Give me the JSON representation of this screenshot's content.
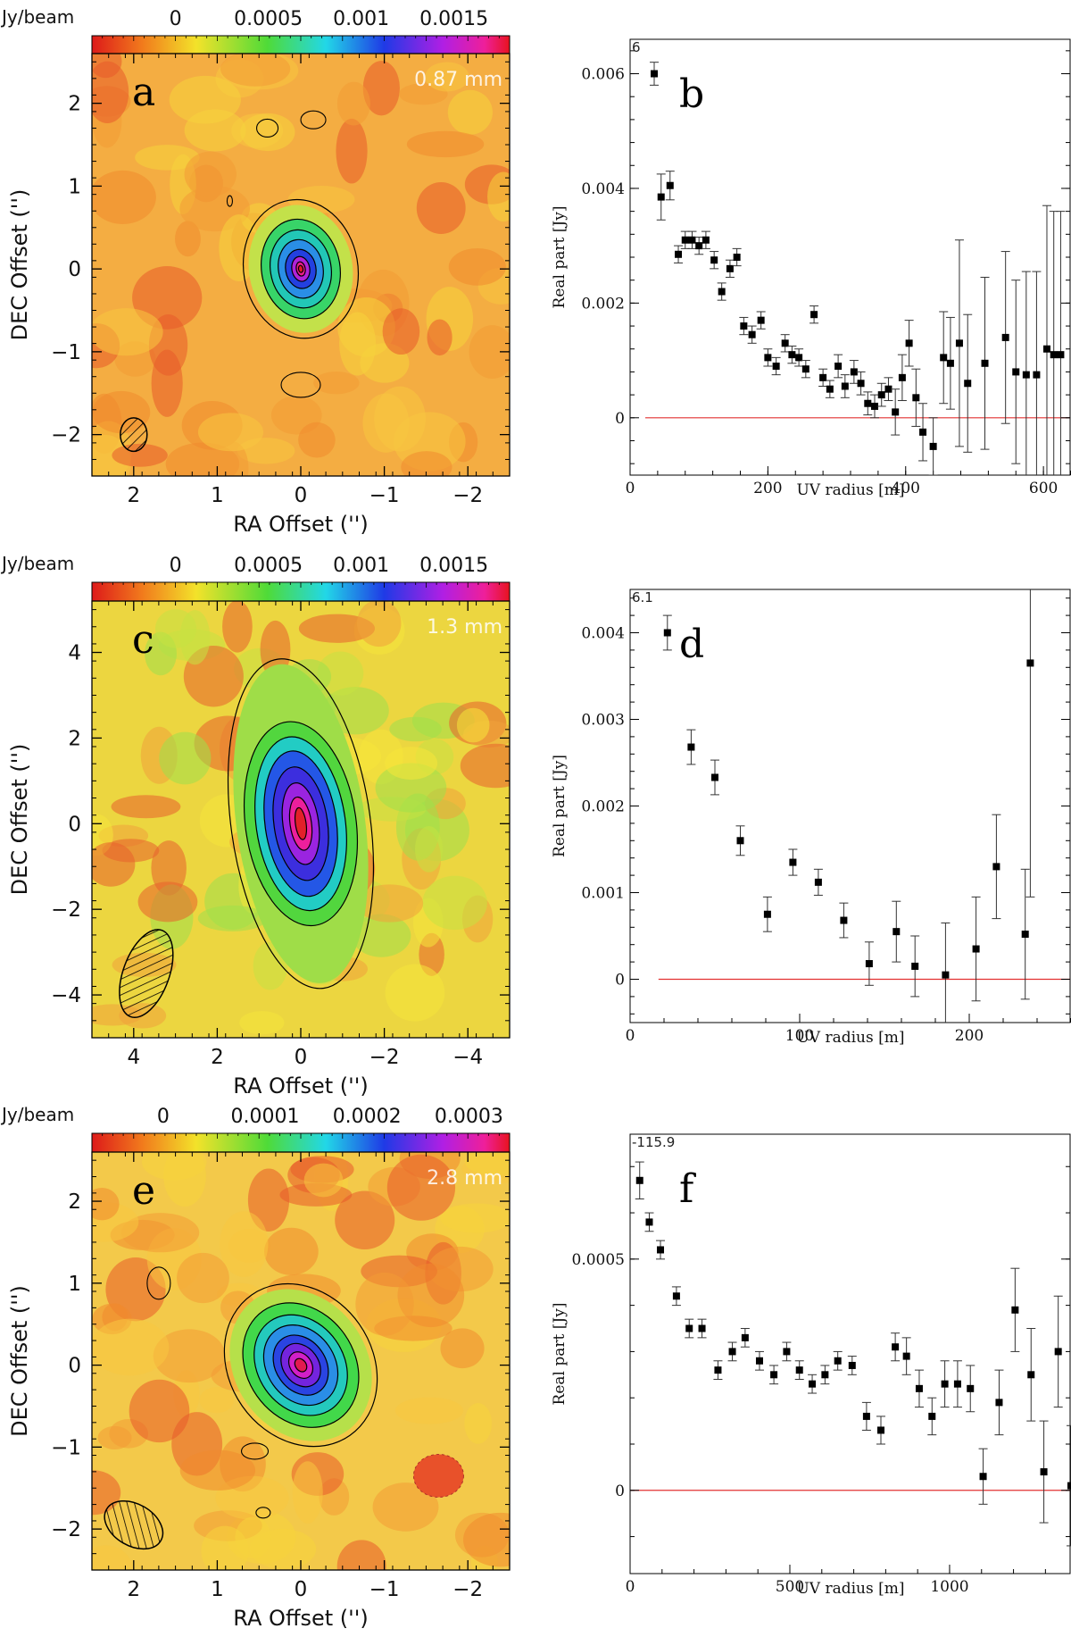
{
  "chart_data": [
    {
      "panel": "a",
      "type": "heatmap",
      "wavelength_label": "0.87 mm",
      "colorbar": {
        "unit": "Jy/beam",
        "ticks": [
          0,
          0.0005,
          0.001,
          0.0015
        ],
        "tick_labels": [
          "0",
          "0.0005",
          "0.001",
          "0.0015"
        ],
        "range": [
          -0.00045,
          0.0018
        ]
      },
      "xlabel": "RA Offset ('')",
      "ylabel": "DEC Offset ('')",
      "xlim": [
        2.5,
        -2.5
      ],
      "ylim": [
        -2.5,
        2.6
      ],
      "xticks": [
        2,
        1,
        0,
        -1,
        -2
      ],
      "xtick_labels": [
        "2",
        "1",
        "0",
        "−1",
        "−2"
      ],
      "yticks": [
        -2,
        -1,
        0,
        1,
        2
      ],
      "ytick_labels": [
        "−2",
        "−1",
        "0",
        "1",
        "2"
      ],
      "peak_position": [
        0,
        0
      ],
      "beam": {
        "x": 2.0,
        "y": -2.0,
        "major_arcsec": 0.4,
        "minor_arcsec": 0.32,
        "pa_deg": 0
      }
    },
    {
      "panel": "b",
      "type": "scatter",
      "corner_label": "6",
      "xlabel": "UV radius [m]",
      "ylabel": "Real part [Jy]",
      "xlim": [
        0,
        640
      ],
      "ylim": [
        -0.001,
        0.0066
      ],
      "xticks": [
        0,
        200,
        400,
        600
      ],
      "xtick_labels": [
        "0",
        "200",
        "400",
        "600"
      ],
      "yticks": [
        0,
        0.002,
        0.004,
        0.006
      ],
      "ytick_labels": [
        "0",
        "0.002",
        "0.004",
        "0.006"
      ],
      "zero_line": true,
      "x": [
        35,
        45,
        58,
        70,
        80,
        90,
        100,
        110,
        122,
        133,
        145,
        155,
        165,
        177,
        190,
        200,
        212,
        225,
        235,
        245,
        255,
        267,
        280,
        290,
        302,
        312,
        325,
        335,
        345,
        355,
        365,
        375,
        385,
        395,
        405,
        415,
        425,
        440,
        455,
        465,
        478,
        490,
        515,
        545,
        560,
        575,
        590,
        605,
        615,
        625
      ],
      "y": [
        0.006,
        0.00385,
        0.00405,
        0.00285,
        0.0031,
        0.0031,
        0.003,
        0.0031,
        0.00275,
        0.0022,
        0.0026,
        0.0028,
        0.0016,
        0.00145,
        0.0017,
        0.00105,
        0.0009,
        0.0013,
        0.0011,
        0.00105,
        0.00085,
        0.0018,
        0.0007,
        0.0005,
        0.0009,
        0.00055,
        0.0008,
        0.0006,
        0.00025,
        0.0002,
        0.0004,
        0.0005,
        0.0001,
        0.0007,
        0.0013,
        0.00035,
        -0.00025,
        -0.0005,
        0.00105,
        0.00095,
        0.0013,
        0.0006,
        0.00095,
        0.0014,
        0.0008,
        0.00075,
        0.00075,
        0.0012,
        0.0011,
        0.0011
      ],
      "yerr": [
        0.0002,
        0.0004,
        0.00025,
        0.00015,
        0.00015,
        0.00015,
        0.00015,
        0.00015,
        0.00015,
        0.00015,
        0.00015,
        0.00015,
        0.00015,
        0.00015,
        0.00015,
        0.00015,
        0.00015,
        0.00015,
        0.00015,
        0.00015,
        0.00015,
        0.00015,
        0.00015,
        0.00015,
        0.0002,
        0.0002,
        0.0002,
        0.0002,
        0.0002,
        0.0002,
        0.0002,
        0.0002,
        0.0004,
        0.0004,
        0.0004,
        0.0005,
        0.0005,
        0.0005,
        0.0008,
        0.0008,
        0.0018,
        0.0012,
        0.0015,
        0.0015,
        0.0016,
        0.0018,
        0.0018,
        0.0025,
        0.0025,
        0.0025
      ]
    },
    {
      "panel": "c",
      "type": "heatmap",
      "wavelength_label": "1.3 mm",
      "colorbar": {
        "unit": "Jy/beam",
        "ticks": [
          0,
          0.0005,
          0.001,
          0.0015
        ],
        "tick_labels": [
          "0",
          "0.0005",
          "0.001",
          "0.0015"
        ],
        "range": [
          -0.00045,
          0.0018
        ]
      },
      "xlabel": "RA Offset ('')",
      "ylabel": "DEC Offset ('')",
      "xlim": [
        5,
        -5
      ],
      "ylim": [
        -5,
        5.2
      ],
      "xticks": [
        4,
        2,
        0,
        -2,
        -4
      ],
      "xtick_labels": [
        "4",
        "2",
        "0",
        "−2",
        "−4"
      ],
      "yticks": [
        -4,
        -2,
        0,
        2,
        4
      ],
      "ytick_labels": [
        "−4",
        "−2",
        "0",
        "2",
        "4"
      ],
      "peak_position": [
        0,
        0
      ],
      "beam": {
        "x": 3.7,
        "y": -3.5,
        "major_arcsec": 2.2,
        "minor_arcsec": 1.1,
        "pa_deg": 20
      }
    },
    {
      "panel": "d",
      "type": "scatter",
      "corner_label": "6.1",
      "xlabel": "UV radius [m]",
      "ylabel": "Real part [Jy]",
      "xlim": [
        0,
        260
      ],
      "ylim": [
        -0.0005,
        0.0045
      ],
      "xticks": [
        0,
        100,
        200
      ],
      "xtick_labels": [
        "0",
        "100",
        "200"
      ],
      "yticks": [
        0,
        0.001,
        0.002,
        0.003,
        0.004
      ],
      "ytick_labels": [
        "0",
        "0.001",
        "0.002",
        "0.003",
        "0.004"
      ],
      "zero_line": true,
      "x": [
        22,
        36,
        50,
        65,
        81,
        96,
        111,
        126,
        141,
        157,
        168,
        186,
        204,
        216,
        233,
        236
      ],
      "y": [
        0.004,
        0.00268,
        0.00233,
        0.0016,
        0.00075,
        0.00135,
        0.00112,
        0.00068,
        0.00018,
        0.00055,
        0.00015,
        5e-05,
        0.00035,
        0.0013,
        0.00052,
        0.00365
      ],
      "yerr": [
        0.0002,
        0.0002,
        0.0002,
        0.00017,
        0.0002,
        0.00015,
        0.00015,
        0.0002,
        0.00025,
        0.00035,
        0.00035,
        0.0006,
        0.0006,
        0.0006,
        0.00075,
        0.0027
      ]
    },
    {
      "panel": "e",
      "type": "heatmap",
      "wavelength_label": "2.8 mm",
      "colorbar": {
        "unit": "Jy/beam",
        "ticks": [
          0,
          0.0001,
          0.0002,
          0.0003
        ],
        "tick_labels": [
          "0",
          "0.0001",
          "0.0002",
          "0.0003"
        ],
        "range": [
          -7e-05,
          0.00034
        ]
      },
      "xlabel": "RA Offset ('')",
      "ylabel": "DEC Offset ('')",
      "xlim": [
        2.5,
        -2.5
      ],
      "ylim": [
        -2.5,
        2.6
      ],
      "xticks": [
        2,
        1,
        0,
        -1,
        -2
      ],
      "xtick_labels": [
        "2",
        "1",
        "0",
        "−1",
        "−2"
      ],
      "yticks": [
        -2,
        -1,
        0,
        1,
        2
      ],
      "ytick_labels": [
        "−2",
        "−1",
        "0",
        "1",
        "2"
      ],
      "peak_position": [
        0,
        0
      ],
      "beam": {
        "x": 2.0,
        "y": -1.95,
        "major_arcsec": 0.75,
        "minor_arcsec": 0.5,
        "pa_deg": -60
      }
    },
    {
      "panel": "f",
      "type": "scatter",
      "corner_label": "-115.9",
      "xlabel": "UV radius [m]",
      "ylabel": "Real part [Jy]",
      "xlim": [
        0,
        1380
      ],
      "ylim": [
        -0.00018,
        0.00077
      ],
      "xticks": [
        0,
        500,
        1000
      ],
      "xtick_labels": [
        "0",
        "500",
        "1000"
      ],
      "yticks": [
        0,
        0.0005
      ],
      "ytick_labels": [
        "0",
        "0.0005"
      ],
      "zero_line": true,
      "x": [
        30,
        60,
        95,
        145,
        185,
        225,
        275,
        320,
        360,
        405,
        450,
        490,
        530,
        570,
        610,
        650,
        695,
        740,
        785,
        830,
        865,
        905,
        945,
        985,
        1025,
        1065,
        1105,
        1155,
        1205,
        1255,
        1295,
        1340,
        1380
      ],
      "y": [
        0.00067,
        0.00058,
        0.00052,
        0.00042,
        0.00035,
        0.00035,
        0.00026,
        0.0003,
        0.00033,
        0.00028,
        0.00025,
        0.0003,
        0.00026,
        0.00023,
        0.00025,
        0.00028,
        0.00027,
        0.00016,
        0.00013,
        0.00031,
        0.00029,
        0.00022,
        0.00016,
        0.00023,
        0.00023,
        0.00022,
        3e-05,
        0.00019,
        0.00039,
        0.00025,
        4e-05,
        0.0003,
        1e-05
      ],
      "yerr": [
        4e-05,
        2e-05,
        2e-05,
        2e-05,
        2e-05,
        2e-05,
        2e-05,
        2e-05,
        2e-05,
        2e-05,
        2e-05,
        2e-05,
        2e-05,
        2e-05,
        2e-05,
        2e-05,
        2e-05,
        3e-05,
        3e-05,
        3e-05,
        4e-05,
        4e-05,
        4e-05,
        5e-05,
        5e-05,
        5e-05,
        6e-05,
        7e-05,
        9e-05,
        0.0001,
        0.00011,
        0.00012,
        0.00013
      ]
    }
  ]
}
